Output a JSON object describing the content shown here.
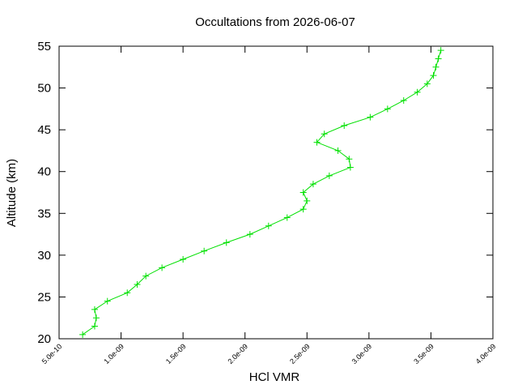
{
  "chart_data": {
    "type": "line",
    "title": "Occultations from 2026-06-07",
    "xlabel": "HCl VMR",
    "ylabel": "Altitude (km)",
    "color": "#00e000",
    "x": [
      6.9e-10,
      7.87e-10,
      8e-10,
      7.87e-10,
      8.9e-10,
      1.05e-09,
      1.13e-09,
      1.2e-09,
      1.33e-09,
      1.5e-09,
      1.67e-09,
      1.85e-09,
      2.04e-09,
      2.19e-09,
      2.34e-09,
      2.47e-09,
      2.5e-09,
      2.47e-09,
      2.55e-09,
      2.68e-09,
      2.85e-09,
      2.84e-09,
      2.75e-09,
      2.58e-09,
      2.64e-09,
      2.8e-09,
      3.01e-09,
      3.15e-09,
      3.28e-09,
      3.39e-09,
      3.47e-09,
      3.52e-09,
      3.54e-09,
      3.56e-09,
      3.58e-09
    ],
    "values": [
      20.5,
      21.5,
      22.5,
      23.5,
      24.5,
      25.5,
      26.5,
      27.5,
      28.5,
      29.5,
      30.5,
      31.5,
      32.5,
      33.5,
      34.5,
      35.5,
      36.5,
      37.5,
      38.5,
      39.5,
      40.5,
      41.5,
      42.5,
      43.5,
      44.5,
      45.5,
      46.5,
      47.5,
      48.5,
      49.5,
      50.5,
      51.5,
      52.5,
      53.5,
      54.5
    ],
    "xlim": [
      5e-10,
      4e-09
    ],
    "xticks": [
      {
        "value": 5e-10,
        "label": "5.0e-10"
      },
      {
        "value": 1e-09,
        "label": "1.0e-09"
      },
      {
        "value": 1.5e-09,
        "label": "1.5e-09"
      },
      {
        "value": 2e-09,
        "label": "2.0e-09"
      },
      {
        "value": 2.5e-09,
        "label": "2.5e-09"
      },
      {
        "value": 3e-09,
        "label": "3.0e-09"
      },
      {
        "value": 3.5e-09,
        "label": "3.5e-09"
      },
      {
        "value": 4e-09,
        "label": "4.0e-09"
      }
    ],
    "ylim": [
      20,
      55
    ],
    "yticks": [
      20,
      25,
      30,
      35,
      40,
      45,
      50,
      55
    ]
  }
}
